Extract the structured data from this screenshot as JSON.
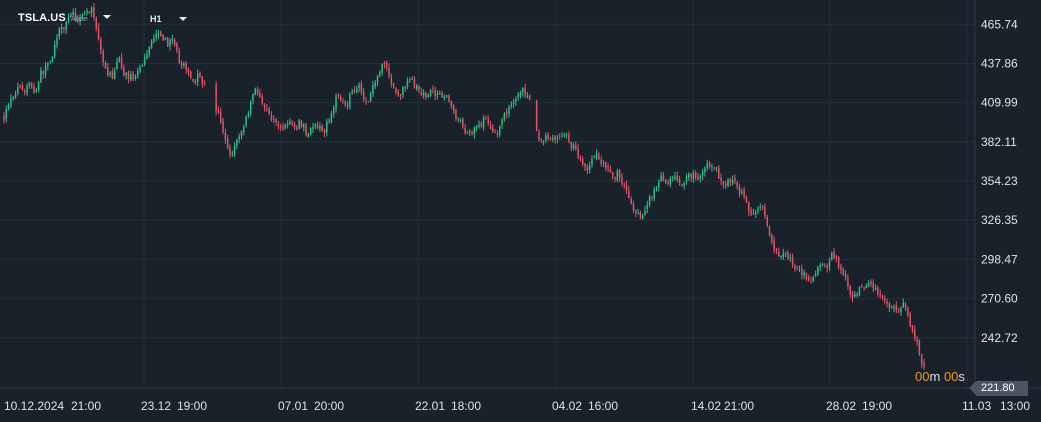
{
  "toolbar": {
    "symbol": "TSLA.US",
    "symbol_type": "Akcie",
    "timeframe": "H1"
  },
  "countdown": {
    "minutes": "00",
    "minutes_unit": "m",
    "seconds": "00",
    "seconds_unit": "s"
  },
  "last_price_label": "221.80",
  "colors": {
    "background": "#19212a",
    "up": "#2fbf8a",
    "down": "#e05568",
    "grid": "#243039",
    "axis_text": "#dfe3e8",
    "countdown_accent": "#f29a1c"
  },
  "chart_data": {
    "type": "candlestick",
    "symbol": "TSLA.US",
    "timeframe": "H1",
    "y_ticks": [
      465.74,
      437.86,
      409.99,
      382.11,
      354.23,
      326.35,
      298.47,
      270.6,
      242.72
    ],
    "x_tick_labels": [
      "10.12.2024",
      "21:00",
      "23.12",
      "19:00",
      "07.01",
      "20:00",
      "22.01",
      "18:00",
      "04.02",
      "16:00",
      "14.02",
      "21:00",
      "28.02",
      "19:00",
      "11.03",
      "13:00"
    ],
    "ylim": [
      207,
      483
    ],
    "last_price": 221.8,
    "grid": true,
    "path_closes": [
      [
        0,
        400
      ],
      [
        4,
        410
      ],
      [
        8,
        414
      ],
      [
        12,
        418
      ],
      [
        16,
        422
      ],
      [
        20,
        416
      ],
      [
        24,
        425
      ],
      [
        28,
        420
      ],
      [
        32,
        418
      ],
      [
        36,
        430
      ],
      [
        40,
        432
      ],
      [
        44,
        438
      ],
      [
        48,
        442
      ],
      [
        52,
        454
      ],
      [
        56,
        461
      ],
      [
        60,
        463
      ],
      [
        64,
        470
      ],
      [
        68,
        475
      ],
      [
        72,
        468
      ],
      [
        76,
        470
      ],
      [
        80,
        476
      ],
      [
        84,
        474
      ],
      [
        88,
        478
      ],
      [
        92,
        464
      ],
      [
        96,
        450
      ],
      [
        100,
        435
      ],
      [
        104,
        430
      ],
      [
        108,
        428
      ],
      [
        112,
        436
      ],
      [
        116,
        440
      ],
      [
        120,
        432
      ],
      [
        124,
        428
      ],
      [
        128,
        430
      ],
      [
        132,
        426
      ],
      [
        136,
        433
      ],
      [
        140,
        440
      ],
      [
        144,
        446
      ],
      [
        148,
        455
      ],
      [
        152,
        458
      ],
      [
        156,
        462
      ],
      [
        160,
        456
      ],
      [
        164,
        452
      ],
      [
        168,
        455
      ],
      [
        172,
        448
      ],
      [
        176,
        440
      ],
      [
        180,
        436
      ],
      [
        184,
        432
      ],
      [
        188,
        428
      ],
      [
        192,
        426
      ],
      [
        196,
        430
      ],
      [
        200,
        424
      ],
      [
        204,
        418
      ],
      [
        208,
        412
      ],
      [
        212,
        406
      ],
      [
        216,
        400
      ],
      [
        220,
        390
      ],
      [
        224,
        378
      ],
      [
        228,
        374
      ],
      [
        232,
        380
      ],
      [
        236,
        386
      ],
      [
        240,
        392
      ],
      [
        244,
        400
      ],
      [
        248,
        412
      ],
      [
        252,
        420
      ],
      [
        256,
        415
      ],
      [
        260,
        410
      ],
      [
        264,
        406
      ],
      [
        268,
        398
      ],
      [
        272,
        396
      ],
      [
        276,
        394
      ],
      [
        280,
        392
      ],
      [
        284,
        395
      ],
      [
        288,
        396
      ],
      [
        292,
        390
      ],
      [
        296,
        396
      ],
      [
        300,
        394
      ],
      [
        304,
        388
      ],
      [
        308,
        390
      ],
      [
        312,
        394
      ],
      [
        316,
        392
      ],
      [
        320,
        388
      ],
      [
        324,
        394
      ],
      [
        328,
        400
      ],
      [
        332,
        410
      ],
      [
        336,
        416
      ],
      [
        340,
        412
      ],
      [
        344,
        408
      ],
      [
        348,
        416
      ],
      [
        352,
        420
      ],
      [
        356,
        424
      ],
      [
        360,
        416
      ],
      [
        364,
        410
      ],
      [
        368,
        416
      ],
      [
        372,
        424
      ],
      [
        376,
        432
      ],
      [
        380,
        438
      ],
      [
        384,
        436
      ],
      [
        388,
        426
      ],
      [
        392,
        418
      ],
      [
        396,
        415
      ],
      [
        400,
        418
      ],
      [
        404,
        422
      ],
      [
        408,
        428
      ],
      [
        412,
        423
      ],
      [
        416,
        418
      ],
      [
        420,
        414
      ],
      [
        424,
        416
      ],
      [
        428,
        420
      ],
      [
        432,
        416
      ],
      [
        436,
        418
      ],
      [
        440,
        416
      ],
      [
        444,
        414
      ],
      [
        448,
        408
      ],
      [
        452,
        404
      ],
      [
        456,
        398
      ],
      [
        460,
        394
      ],
      [
        464,
        390
      ],
      [
        468,
        388
      ],
      [
        472,
        392
      ],
      [
        476,
        394
      ],
      [
        480,
        396
      ],
      [
        484,
        398
      ],
      [
        488,
        394
      ],
      [
        492,
        390
      ],
      [
        496,
        388
      ],
      [
        500,
        396
      ],
      [
        504,
        402
      ],
      [
        508,
        408
      ],
      [
        512,
        412
      ],
      [
        516,
        414
      ],
      [
        520,
        420
      ],
      [
        524,
        416
      ],
      [
        528,
        410
      ],
      [
        532,
        400
      ],
      [
        536,
        384
      ],
      [
        540,
        382
      ],
      [
        544,
        386
      ],
      [
        548,
        384
      ],
      [
        552,
        386
      ],
      [
        556,
        384
      ],
      [
        560,
        386
      ],
      [
        564,
        388
      ],
      [
        568,
        382
      ],
      [
        572,
        378
      ],
      [
        576,
        374
      ],
      [
        580,
        370
      ],
      [
        584,
        362
      ],
      [
        588,
        366
      ],
      [
        592,
        370
      ],
      [
        596,
        374
      ],
      [
        600,
        368
      ],
      [
        604,
        366
      ],
      [
        608,
        362
      ],
      [
        612,
        356
      ],
      [
        616,
        360
      ],
      [
        620,
        354
      ],
      [
        624,
        350
      ],
      [
        628,
        342
      ],
      [
        632,
        332
      ],
      [
        636,
        330
      ],
      [
        640,
        326
      ],
      [
        644,
        334
      ],
      [
        648,
        342
      ],
      [
        652,
        346
      ],
      [
        656,
        350
      ],
      [
        660,
        356
      ],
      [
        664,
        352
      ],
      [
        668,
        356
      ],
      [
        672,
        358
      ],
      [
        676,
        354
      ],
      [
        680,
        350
      ],
      [
        684,
        356
      ],
      [
        688,
        358
      ],
      [
        692,
        360
      ],
      [
        696,
        356
      ],
      [
        700,
        358
      ],
      [
        704,
        362
      ],
      [
        708,
        366
      ],
      [
        712,
        366
      ],
      [
        716,
        360
      ],
      [
        720,
        356
      ],
      [
        724,
        352
      ],
      [
        728,
        354
      ],
      [
        732,
        354
      ],
      [
        736,
        352
      ],
      [
        740,
        346
      ],
      [
        744,
        340
      ],
      [
        748,
        334
      ],
      [
        752,
        330
      ],
      [
        756,
        336
      ],
      [
        760,
        338
      ],
      [
        764,
        330
      ],
      [
        768,
        318
      ],
      [
        772,
        306
      ],
      [
        776,
        302
      ],
      [
        780,
        300
      ],
      [
        784,
        304
      ],
      [
        788,
        300
      ],
      [
        792,
        296
      ],
      [
        796,
        292
      ],
      [
        800,
        290
      ],
      [
        804,
        288
      ],
      [
        808,
        286
      ],
      [
        812,
        284
      ],
      [
        816,
        290
      ],
      [
        820,
        294
      ],
      [
        824,
        292
      ],
      [
        828,
        296
      ],
      [
        832,
        302
      ],
      [
        836,
        298
      ],
      [
        840,
        290
      ],
      [
        844,
        286
      ],
      [
        848,
        276
      ],
      [
        852,
        270
      ],
      [
        856,
        272
      ],
      [
        860,
        278
      ],
      [
        864,
        276
      ],
      [
        868,
        280
      ],
      [
        872,
        278
      ],
      [
        876,
        276
      ],
      [
        880,
        272
      ],
      [
        884,
        268
      ],
      [
        888,
        266
      ],
      [
        892,
        264
      ],
      [
        896,
        262
      ],
      [
        900,
        264
      ],
      [
        904,
        266
      ],
      [
        908,
        258
      ],
      [
        912,
        248
      ],
      [
        916,
        240
      ],
      [
        920,
        230
      ],
      [
        924,
        222
      ]
    ]
  }
}
